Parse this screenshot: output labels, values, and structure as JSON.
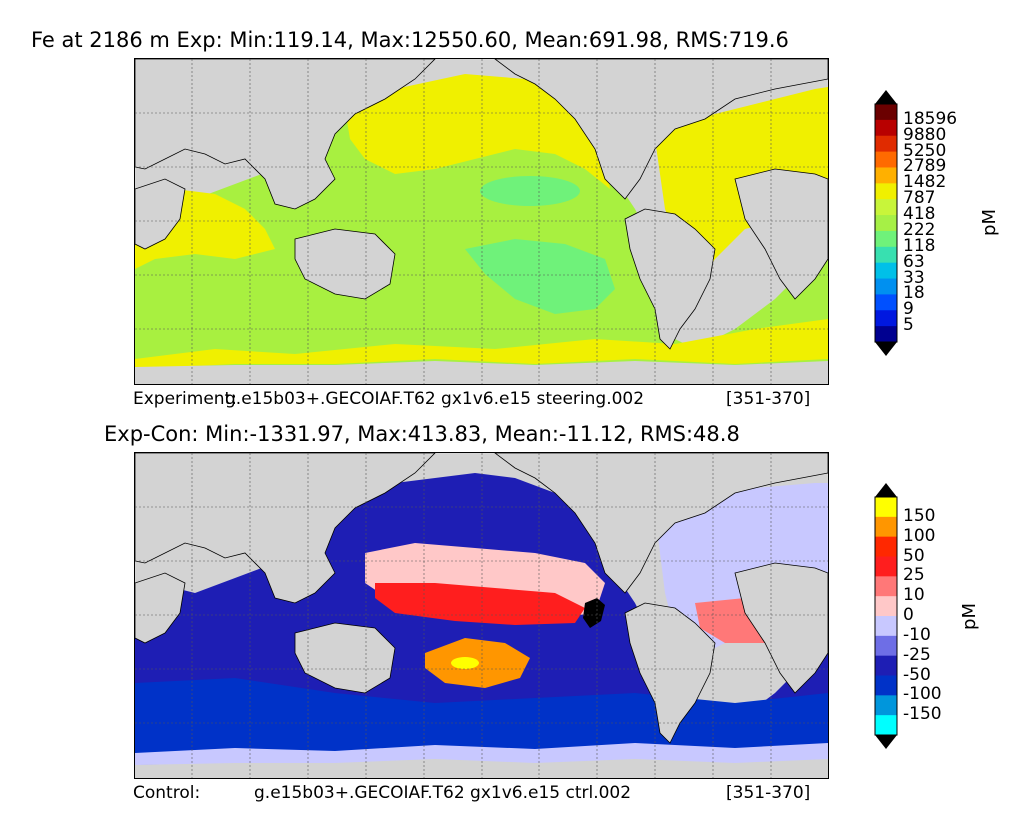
{
  "panels": [
    {
      "id": "top",
      "title": "Fe at 2186 m Exp: Min:119.14, Max:12550.60, Mean:691.98, RMS:719.6",
      "footer_left": "Experiment:",
      "footer_run": "g.e15b03+.GECOIAF.T62 gx1v6.e15 steering.002",
      "footer_years": "[351-370]",
      "colorbar": {
        "unit": "pM",
        "levels": [
          "18596",
          "9880",
          "5250",
          "2789",
          "1482",
          "787",
          "418",
          "222",
          "118",
          "63",
          "33",
          "18",
          "9",
          "5"
        ],
        "colors": [
          "#6b0000",
          "#b80000",
          "#e02b00",
          "#ff6a00",
          "#ffb000",
          "#f0f000",
          "#c8f53a",
          "#a6f046",
          "#6ff27a",
          "#38e0b0",
          "#00c0e8",
          "#0090f0",
          "#0050ff",
          "#0018e0",
          "#000090"
        ],
        "over_color": "#000000",
        "under_color": "#000000"
      }
    },
    {
      "id": "bottom",
      "title": "Exp-Con: Min:-1331.97, Max:413.83, Mean:-11.12, RMS:48.8",
      "footer_left": "Control:",
      "footer_run": "g.e15b03+.GECOIAF.T62 gx1v6.e15 ctrl.002",
      "footer_years": "[351-370]",
      "colorbar": {
        "unit": "pM",
        "levels": [
          "150",
          "100",
          "50",
          "25",
          "10",
          "0",
          "-10",
          "-25",
          "-50",
          "-100",
          "-150"
        ],
        "colors": [
          "#ffff00",
          "#ff9600",
          "#ff2800",
          "#ff1e1e",
          "#ff7878",
          "#ffc8c8",
          "#c8c8ff",
          "#6e6ee6",
          "#1e1eb4",
          "#0032c8",
          "#0096dc",
          "#00ffff"
        ],
        "over_color": "#000000",
        "under_color": "#000000"
      }
    }
  ],
  "colors": {
    "land": "#d3d3d3",
    "ice": "#ffffff",
    "top_ocean_main": "#a8f040",
    "top_ocean_high": "#f0f000",
    "top_ocean_low": "#6ff27a",
    "diff_red": "#ff1e1e",
    "diff_orange": "#ff9600",
    "diff_pink": "#ffc8c8",
    "diff_lavender": "#c8c8ff",
    "diff_blue": "#1e1eb4",
    "diff_mid_blue": "#0032c8"
  }
}
